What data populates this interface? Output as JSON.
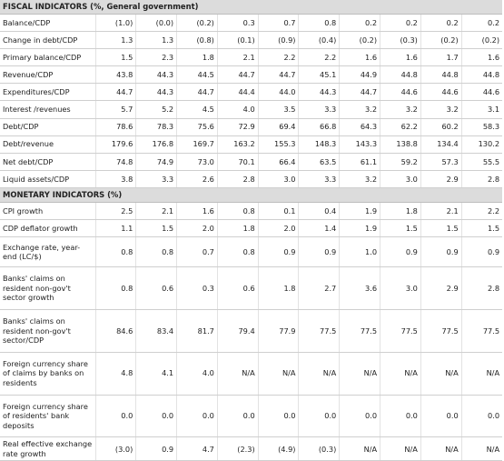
{
  "fiscal": {
    "title": "FISCAL INDICATORS (%, General government)",
    "rows": [
      {
        "label": "Balance/CDP",
        "values": [
          "(1.0)",
          "(0.0)",
          "(0.2)",
          "0.3",
          "0.7",
          "0.8",
          "0.2",
          "0.2",
          "0.2",
          "0.2"
        ]
      },
      {
        "label": "Change in debt/CDP",
        "values": [
          "1.3",
          "1.3",
          "(0.8)",
          "(0.1)",
          "(0.9)",
          "(0.4)",
          "(0.2)",
          "(0.3)",
          "(0.2)",
          "(0.2)"
        ]
      },
      {
        "label": "Primary balance/CDP",
        "values": [
          "1.5",
          "2.3",
          "1.8",
          "2.1",
          "2.2",
          "2.2",
          "1.6",
          "1.6",
          "1.7",
          "1.6"
        ]
      },
      {
        "label": "Revenue/CDP",
        "values": [
          "43.8",
          "44.3",
          "44.5",
          "44.7",
          "44.7",
          "45.1",
          "44.9",
          "44.8",
          "44.8",
          "44.8"
        ]
      },
      {
        "label": "Expenditures/CDP",
        "values": [
          "44.7",
          "44.3",
          "44.7",
          "44.4",
          "44.0",
          "44.3",
          "44.7",
          "44.6",
          "44.6",
          "44.6"
        ]
      },
      {
        "label": "Interest /revenues",
        "values": [
          "5.7",
          "5.2",
          "4.5",
          "4.0",
          "3.5",
          "3.3",
          "3.2",
          "3.2",
          "3.2",
          "3.1"
        ]
      },
      {
        "label": "Debt/CDP",
        "values": [
          "78.6",
          "78.3",
          "75.6",
          "72.9",
          "69.4",
          "66.8",
          "64.3",
          "62.2",
          "60.2",
          "58.3"
        ]
      },
      {
        "label": "Debt/revenue",
        "values": [
          "179.6",
          "176.8",
          "169.7",
          "163.2",
          "155.3",
          "148.3",
          "143.3",
          "138.8",
          "134.4",
          "130.2"
        ]
      },
      {
        "label": "Net debt/CDP",
        "values": [
          "74.8",
          "74.9",
          "73.0",
          "70.1",
          "66.4",
          "63.5",
          "61.1",
          "59.2",
          "57.3",
          "55.5"
        ]
      },
      {
        "label": "Liquid assets/CDP",
        "values": [
          "3.8",
          "3.3",
          "2.6",
          "2.8",
          "3.0",
          "3.3",
          "3.2",
          "3.0",
          "2.9",
          "2.8"
        ]
      }
    ]
  },
  "monetary": {
    "title": "MONETARY INDICATORS (%)",
    "rows": [
      {
        "label": "CPI growth",
        "values": [
          "2.5",
          "2.1",
          "1.6",
          "0.8",
          "0.1",
          "0.4",
          "1.9",
          "1.8",
          "2.1",
          "2.2"
        ]
      },
      {
        "label": "CDP deflator growth",
        "values": [
          "1.1",
          "1.5",
          "2.0",
          "1.8",
          "2.0",
          "1.4",
          "1.9",
          "1.5",
          "1.5",
          "1.5"
        ]
      },
      {
        "label": "Exchange rate, year-end (LC/$)",
        "values": [
          "0.8",
          "0.8",
          "0.7",
          "0.8",
          "0.9",
          "0.9",
          "1.0",
          "0.9",
          "0.9",
          "0.9"
        ]
      },
      {
        "label": "Banks' claims on resident non-gov't sector growth",
        "values": [
          "0.8",
          "0.6",
          "0.3",
          "0.6",
          "1.8",
          "2.7",
          "3.6",
          "3.0",
          "2.9",
          "2.8"
        ]
      },
      {
        "label": "Banks' claims on resident non-gov't sector/CDP",
        "values": [
          "84.6",
          "83.4",
          "81.7",
          "79.4",
          "77.9",
          "77.5",
          "77.5",
          "77.5",
          "77.5",
          "77.5"
        ]
      },
      {
        "label": "Foreign currency share of claims by banks on residents",
        "values": [
          "4.8",
          "4.1",
          "4.0",
          "N/A",
          "N/A",
          "N/A",
          "N/A",
          "N/A",
          "N/A",
          "N/A"
        ]
      },
      {
        "label": "Foreign currency share of residents' bank deposits",
        "values": [
          "0.0",
          "0.0",
          "0.0",
          "0.0",
          "0.0",
          "0.0",
          "0.0",
          "0.0",
          "0.0",
          "0.0"
        ]
      },
      {
        "label": "Real effective exchange rate growth",
        "values": [
          "(3.0)",
          "0.9",
          "4.7",
          "(2.3)",
          "(4.9)",
          "(0.3)",
          "N/A",
          "N/A",
          "N/A",
          "N/A"
        ]
      }
    ]
  }
}
